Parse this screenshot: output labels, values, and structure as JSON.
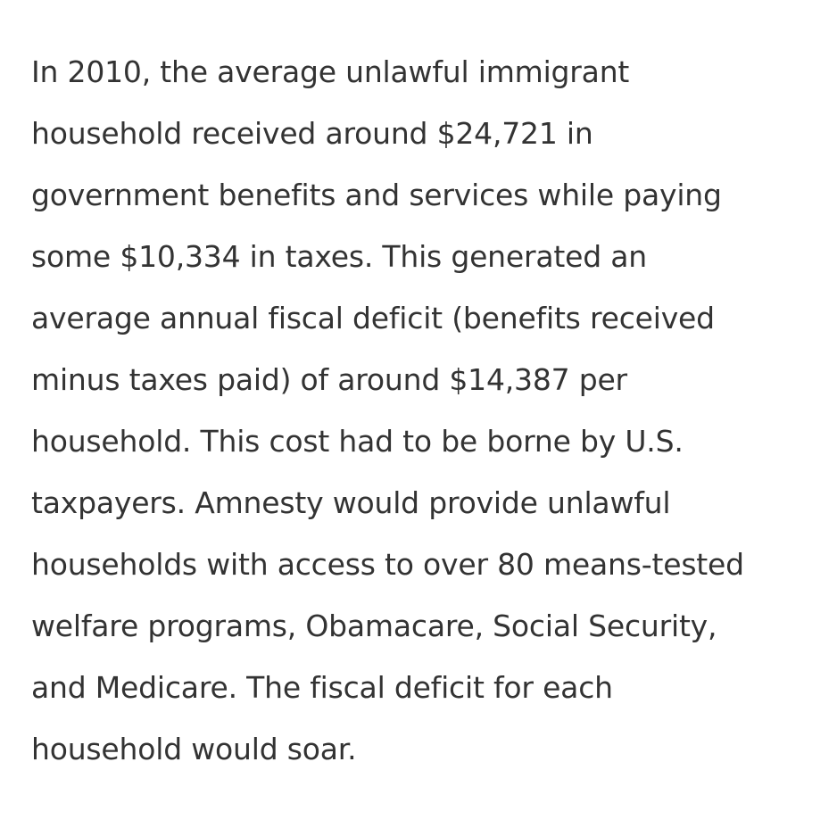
{
  "paragraph": {
    "lines": [
      "In 2010, the average unlawful immigrant",
      "household received around $24,721 in",
      "government benefits and services while paying",
      "some $10,334 in taxes. This generated an",
      "average annual fiscal deficit (benefits received",
      "minus taxes paid) of around $14,387 per",
      "household. This cost had to be borne by U.S.",
      "taxpayers. Amnesty would provide unlawful",
      "households with access to over 80 means-tested",
      "welfare programs, Obamacare, Social Security,",
      "and Medicare. The fiscal deficit for each",
      "household would soar."
    ]
  }
}
